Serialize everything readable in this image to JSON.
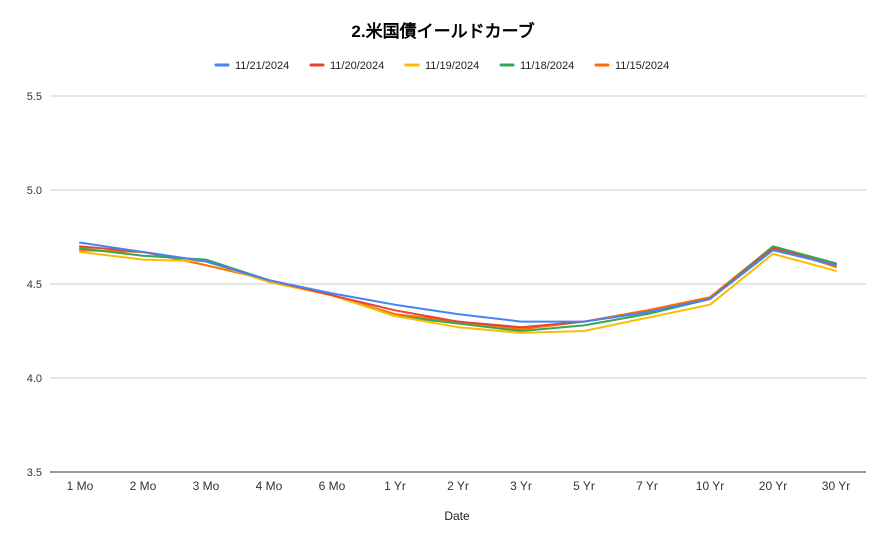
{
  "chart_data": {
    "type": "line",
    "title": "2.米国債イールドカーブ",
    "xlabel": "Date",
    "ylabel": "",
    "ylim": [
      3.5,
      5.5
    ],
    "yticks": [
      "5.5",
      "5.0",
      "4.5",
      "4.0",
      "3.5"
    ],
    "grid": true,
    "legend_position": "top",
    "categories": [
      "1 Mo",
      "2 Mo",
      "3 Mo",
      "4 Mo",
      "6 Mo",
      "1 Yr",
      "2 Yr",
      "3 Yr",
      "5 Yr",
      "7 Yr",
      "10 Yr",
      "20 Yr",
      "30 Yr"
    ],
    "series": [
      {
        "name": "11/21/2024",
        "color": "#4285F4",
        "values": [
          4.72,
          4.67,
          4.62,
          4.52,
          4.45,
          4.39,
          4.34,
          4.3,
          4.3,
          4.35,
          4.42,
          4.68,
          4.6
        ]
      },
      {
        "name": "11/20/2024",
        "color": "#EA4335",
        "values": [
          4.7,
          4.67,
          4.62,
          4.52,
          4.44,
          4.36,
          4.3,
          4.27,
          4.3,
          4.35,
          4.42,
          4.69,
          4.6
        ]
      },
      {
        "name": "11/19/2024",
        "color": "#FBBC04",
        "values": [
          4.67,
          4.63,
          4.62,
          4.51,
          4.44,
          4.33,
          4.27,
          4.24,
          4.25,
          4.32,
          4.39,
          4.66,
          4.57
        ]
      },
      {
        "name": "11/18/2024",
        "color": "#34A853",
        "values": [
          4.69,
          4.65,
          4.63,
          4.52,
          4.44,
          4.33,
          4.29,
          4.25,
          4.28,
          4.34,
          4.42,
          4.7,
          4.61
        ]
      },
      {
        "name": "11/15/2024",
        "color": "#FF6D01",
        "values": [
          4.68,
          4.67,
          4.6,
          4.52,
          4.44,
          4.34,
          4.3,
          4.26,
          4.3,
          4.36,
          4.43,
          4.7,
          4.59
        ]
      }
    ]
  }
}
